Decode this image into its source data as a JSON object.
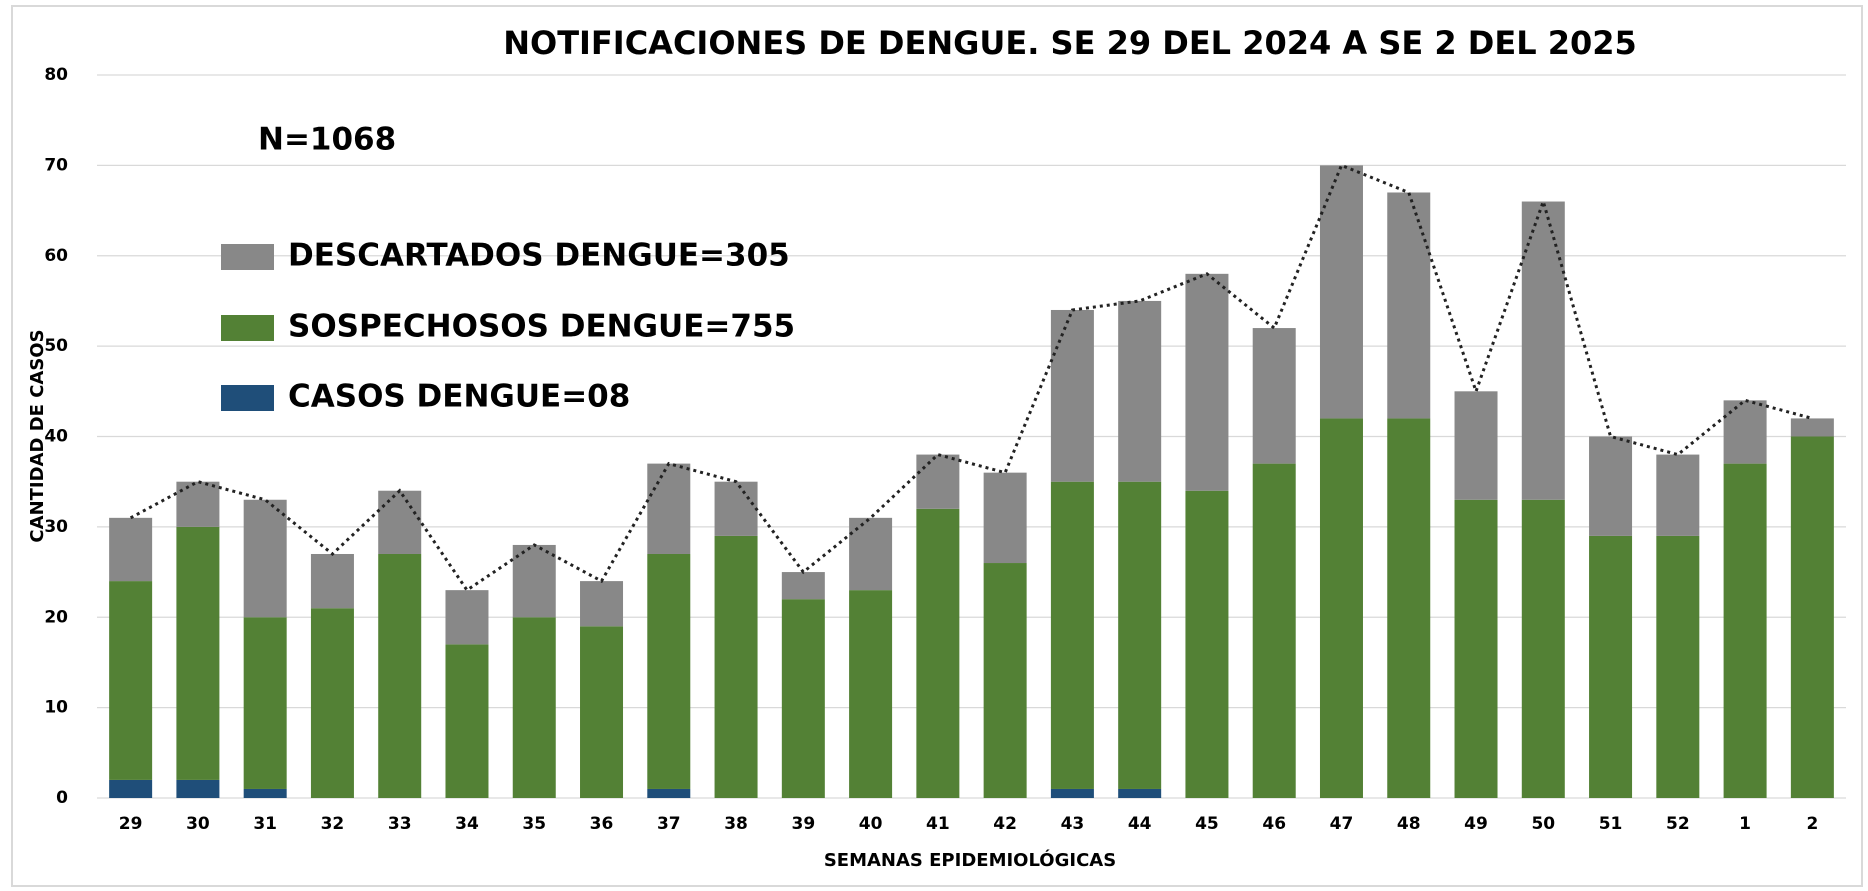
{
  "chart_data": {
    "type": "bar",
    "stacked": true,
    "title": "NOTIFICACIONES DE DENGUE. SE 29 DEL 2024 A SE 2 DEL 2025",
    "annotation": "N=1068",
    "x_label": "SEMANAS EPIDEMIOLÓGICAS",
    "y_label": "CANTIDAD DE CASOS",
    "categories": [
      "29",
      "30",
      "31",
      "32",
      "33",
      "34",
      "35",
      "36",
      "37",
      "38",
      "39",
      "40",
      "41",
      "42",
      "43",
      "44",
      "45",
      "46",
      "47",
      "48",
      "49",
      "50",
      "51",
      "52",
      "1",
      "2"
    ],
    "series": [
      {
        "name": "CASOS DENGUE=08",
        "color": "#1f4e79",
        "values": [
          2,
          2,
          1,
          0,
          0,
          0,
          0,
          0,
          1,
          0,
          0,
          0,
          0,
          0,
          1,
          1,
          0,
          0,
          0,
          0,
          0,
          0,
          0,
          0,
          0,
          0
        ]
      },
      {
        "name": "SOSPECHOSOS DENGUE=755",
        "color": "#538135",
        "values": [
          22,
          28,
          19,
          21,
          27,
          17,
          20,
          19,
          26,
          29,
          22,
          23,
          32,
          26,
          34,
          34,
          34,
          37,
          42,
          42,
          33,
          33,
          29,
          29,
          37,
          40
        ]
      },
      {
        "name": "DESCARTADOS DENGUE=305",
        "color": "#888888",
        "values": [
          7,
          5,
          13,
          6,
          7,
          6,
          8,
          5,
          10,
          6,
          3,
          8,
          6,
          10,
          19,
          20,
          24,
          15,
          28,
          25,
          12,
          33,
          11,
          9,
          7,
          2
        ]
      }
    ],
    "ylim": [
      0,
      80
    ],
    "yticks": [
      0,
      10,
      20,
      30,
      40,
      50,
      60,
      70,
      80
    ],
    "grid": true,
    "total_line": true
  }
}
